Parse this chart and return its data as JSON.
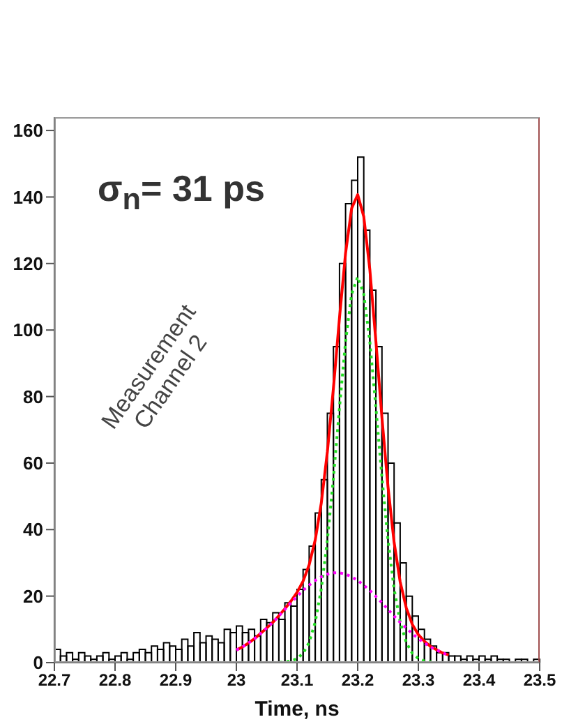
{
  "chart_data": {
    "type": "histogram",
    "xlabel": "Time, ns",
    "bins": [
      22.7,
      22.71,
      22.72,
      22.73,
      22.74,
      22.75,
      22.76,
      22.77,
      22.78,
      22.79,
      22.8,
      22.81,
      22.82,
      22.83,
      22.84,
      22.85,
      22.86,
      22.87,
      22.88,
      22.89,
      22.9,
      22.91,
      22.92,
      22.93,
      22.94,
      22.95,
      22.96,
      22.97,
      22.98,
      22.99,
      23.0,
      23.01,
      23.02,
      23.03,
      23.04,
      23.05,
      23.06,
      23.07,
      23.08,
      23.09,
      23.1,
      23.11,
      23.12,
      23.13,
      23.14,
      23.15,
      23.16,
      23.17,
      23.18,
      23.19,
      23.2,
      23.21,
      23.22,
      23.23,
      23.24,
      23.25,
      23.26,
      23.27,
      23.28,
      23.29,
      23.3,
      23.31,
      23.32,
      23.33,
      23.34,
      23.35,
      23.36,
      23.37,
      23.38,
      23.39,
      23.4,
      23.41,
      23.42,
      23.43,
      23.44,
      23.45,
      23.46,
      23.47,
      23.48,
      23.49,
      23.5
    ],
    "values": [
      4,
      2,
      3,
      1,
      3,
      2,
      1,
      2,
      3,
      1,
      2,
      3,
      1,
      3,
      4,
      3,
      5,
      4,
      6,
      5,
      4,
      7,
      5,
      9,
      6,
      8,
      7,
      6,
      10,
      9,
      11,
      9,
      10,
      8,
      13,
      12,
      15,
      13,
      18,
      17,
      22,
      28,
      35,
      45,
      55,
      75,
      95,
      120,
      138,
      145,
      152,
      130,
      112,
      95,
      75,
      60,
      42,
      30,
      20,
      14,
      10,
      7,
      5,
      3,
      3,
      2,
      2,
      1,
      2,
      1,
      2,
      1,
      2,
      1,
      1,
      0,
      1,
      1,
      0,
      1
    ],
    "color": "#000000",
    "series": [
      {
        "type": "line",
        "color": "#ff0000",
        "line_style": "solid",
        "x": [
          23.0,
          23.01,
          23.02,
          23.03,
          23.04,
          23.05,
          23.06,
          23.07,
          23.08,
          23.09,
          23.1,
          23.11,
          23.12,
          23.13,
          23.14,
          23.15,
          23.16,
          23.17,
          23.18,
          23.19,
          23.2,
          23.21,
          23.22,
          23.23,
          23.24,
          23.25,
          23.26,
          23.27,
          23.28,
          23.29,
          23.3,
          23.31,
          23.32,
          23.33,
          23.34,
          23.35
        ],
        "values": [
          3.8,
          4.7,
          5.9,
          7.2,
          8.8,
          10.4,
          12.1,
          14.1,
          16.2,
          18.5,
          21.1,
          24.5,
          29.4,
          36.9,
          48.0,
          63.4,
          82.6,
          103.7,
          123.1,
          136.6,
          140.7,
          134.1,
          118.2,
          96.6,
          73.6,
          52.8,
          36.2,
          24.3,
          16.5,
          11.5,
          8.4,
          6.4,
          4.9,
          3.9,
          2.9,
          2.3
        ]
      },
      {
        "type": "line",
        "color": "#22dd22",
        "line_style": "dotted",
        "x": [
          23.06,
          23.07,
          23.08,
          23.09,
          23.1,
          23.11,
          23.12,
          23.13,
          23.14,
          23.15,
          23.16,
          23.17,
          23.18,
          23.19,
          23.2,
          23.21,
          23.22,
          23.23,
          23.24,
          23.25,
          23.26,
          23.27,
          23.28,
          23.29,
          23.3,
          23.31,
          23.32,
          23.33,
          23.34
        ],
        "values": [
          0,
          0,
          0.2,
          0.5,
          1.2,
          2.8,
          6.1,
          12.2,
          22.2,
          36.8,
          55.6,
          76.7,
          96.5,
          110.8,
          116,
          110.8,
          96.5,
          76.7,
          55.6,
          36.8,
          22.2,
          12.2,
          6.1,
          2.8,
          1.2,
          0.5,
          0.2,
          0,
          0
        ]
      },
      {
        "type": "line",
        "color": "#ff00ff",
        "line_style": "dotted",
        "x": [
          23.0,
          23.01,
          23.02,
          23.03,
          23.04,
          23.05,
          23.06,
          23.07,
          23.08,
          23.09,
          23.1,
          23.11,
          23.12,
          23.13,
          23.14,
          23.15,
          23.16,
          23.17,
          23.18,
          23.19,
          23.2,
          23.21,
          23.22,
          23.23,
          23.24,
          23.25,
          23.26,
          23.27,
          23.28,
          23.29,
          23.3,
          23.31,
          23.32,
          23.33,
          23.34,
          23.35
        ],
        "values": [
          3.8,
          4.7,
          5.9,
          7.2,
          8.7,
          10.4,
          12.1,
          14.0,
          16.0,
          18.0,
          19.9,
          21.7,
          23.3,
          24.7,
          25.8,
          26.6,
          27.0,
          27.0,
          26.6,
          25.8,
          24.7,
          23.3,
          21.7,
          19.9,
          18.0,
          16.0,
          14.0,
          12.1,
          10.4,
          8.7,
          7.2,
          5.9,
          4.7,
          3.8,
          2.9,
          2.3
        ]
      }
    ],
    "xlim": [
      22.7,
      23.5
    ],
    "xticks": [
      22.7,
      22.8,
      22.9,
      23,
      23.1,
      23.2,
      23.3,
      23.4,
      23.5
    ],
    "ylim": [
      0,
      164
    ],
    "yticks": [
      0,
      20,
      40,
      60,
      80,
      100,
      120,
      140,
      160
    ],
    "annotations": [
      "σ$_{n}$= 31 ps",
      "Measurement\nChannel 2"
    ]
  }
}
